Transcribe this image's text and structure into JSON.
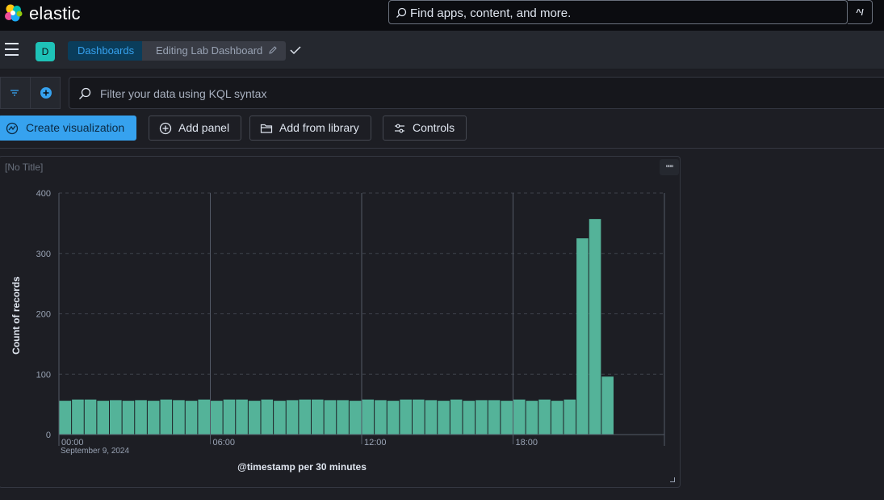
{
  "header": {
    "brand": "elastic",
    "search_placeholder": "Find apps, content, and more.",
    "shortcut": "^/"
  },
  "nav": {
    "space_initial": "D",
    "breadcrumbs": [
      "Dashboards",
      "Editing Lab Dashboard"
    ]
  },
  "query": {
    "placeholder": "Filter your data using KQL syntax"
  },
  "toolbar": {
    "create_visualization": "Create visualization",
    "add_panel": "Add panel",
    "add_from_library": "Add from library",
    "controls": "Controls"
  },
  "panel": {
    "title": "[No Title]"
  },
  "colors": {
    "bar": "#54b399",
    "accent": "#36a2ef",
    "space_avatar": "#1ec2b7"
  },
  "chart_data": {
    "type": "bar",
    "ylabel": "Count of records",
    "xlabel": "@timestamp per 30 minutes",
    "ylim": [
      0,
      400
    ],
    "yticks": [
      0,
      100,
      200,
      300,
      400
    ],
    "x_tick_labels": [
      "00:00",
      "06:00",
      "12:00",
      "18:00"
    ],
    "x_sublabel": "September 9, 2024",
    "grid": true,
    "interval_minutes": 30,
    "values": [
      56,
      58,
      58,
      56,
      57,
      56,
      57,
      56,
      58,
      57,
      56,
      58,
      56,
      58,
      58,
      56,
      58,
      56,
      57,
      58,
      58,
      57,
      57,
      56,
      58,
      57,
      56,
      58,
      58,
      57,
      56,
      58,
      56,
      57,
      57,
      56,
      58,
      56,
      58,
      56,
      58,
      325,
      357,
      96
    ]
  }
}
